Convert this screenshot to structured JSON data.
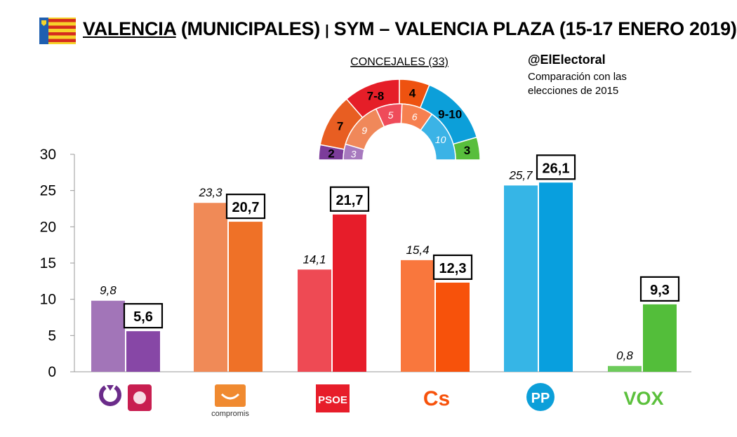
{
  "header": {
    "city": "VALENCIA",
    "rest": "(MUNICIPALES)",
    "separator": "|",
    "poll": "SYM – VALENCIA PLAZA (15-17 ENERO 2019)",
    "source": "@ElElectoral",
    "note": "Comparación con las elecciones de 2015"
  },
  "colors": {
    "flag_yellow": "#F6D32B",
    "flag_red": "#D52B1E",
    "flag_blue": "#1F5FB0"
  },
  "chart_data": [
    {
      "type": "bar",
      "categories": [
        "Podemos / EUPV",
        "Compromís",
        "PSOE",
        "Cs",
        "PP",
        "VOX"
      ],
      "logo_texts": [
        "compromis",
        "PSOE",
        "Cs",
        "PP",
        "VOX"
      ],
      "series": [
        {
          "name": "2015",
          "values": [
            9.8,
            23.3,
            14.1,
            15.4,
            25.7,
            0.8
          ]
        },
        {
          "name": "",
          "values": [
            5.6,
            20.7,
            21.7,
            12.3,
            26.1,
            9.3
          ]
        }
      ],
      "value_labels_prev": [
        "9,8",
        "23,3",
        "14,1",
        "15,4",
        "25,7",
        "0,8"
      ],
      "value_labels_cur": [
        "5,6",
        "20,7",
        "21,7",
        "12,3",
        "26,1",
        "9,3"
      ],
      "colors_prev": [
        "#A275B8",
        "#F08A57",
        "#EE4A54",
        "#F9773D",
        "#36B5E6",
        "#6DCB5B"
      ],
      "colors_cur": [
        "#8747A6",
        "#EF7127",
        "#E71D2A",
        "#F7520B",
        "#089FDE",
        "#53BE3A"
      ],
      "ylim": [
        0,
        30
      ],
      "yticks": [
        "0",
        "5",
        "10",
        "15",
        "20",
        "25",
        "30"
      ],
      "xlabel": "",
      "ylabel": ""
    },
    {
      "type": "pie",
      "title": "CONCEJALES (33)",
      "outer_ring": {
        "labels": [
          "2",
          "7",
          "7-8",
          "4",
          "9-10",
          "3"
        ],
        "values": [
          2,
          7,
          7.5,
          4,
          9.5,
          3
        ],
        "colors": [
          "#7C3C9A",
          "#E85E22",
          "#E51E28",
          "#EE5210",
          "#0C9FD9",
          "#58BE3C"
        ]
      },
      "inner_ring": {
        "labels": [
          "3",
          "9",
          "5",
          "6",
          "10",
          ""
        ],
        "values": [
          3,
          9,
          5,
          6,
          10,
          0
        ],
        "colors": [
          "#A779BE",
          "#F0885A",
          "#EF4B5A",
          "#F68050",
          "#3BB3E6",
          "#6DCB5B"
        ]
      }
    }
  ]
}
